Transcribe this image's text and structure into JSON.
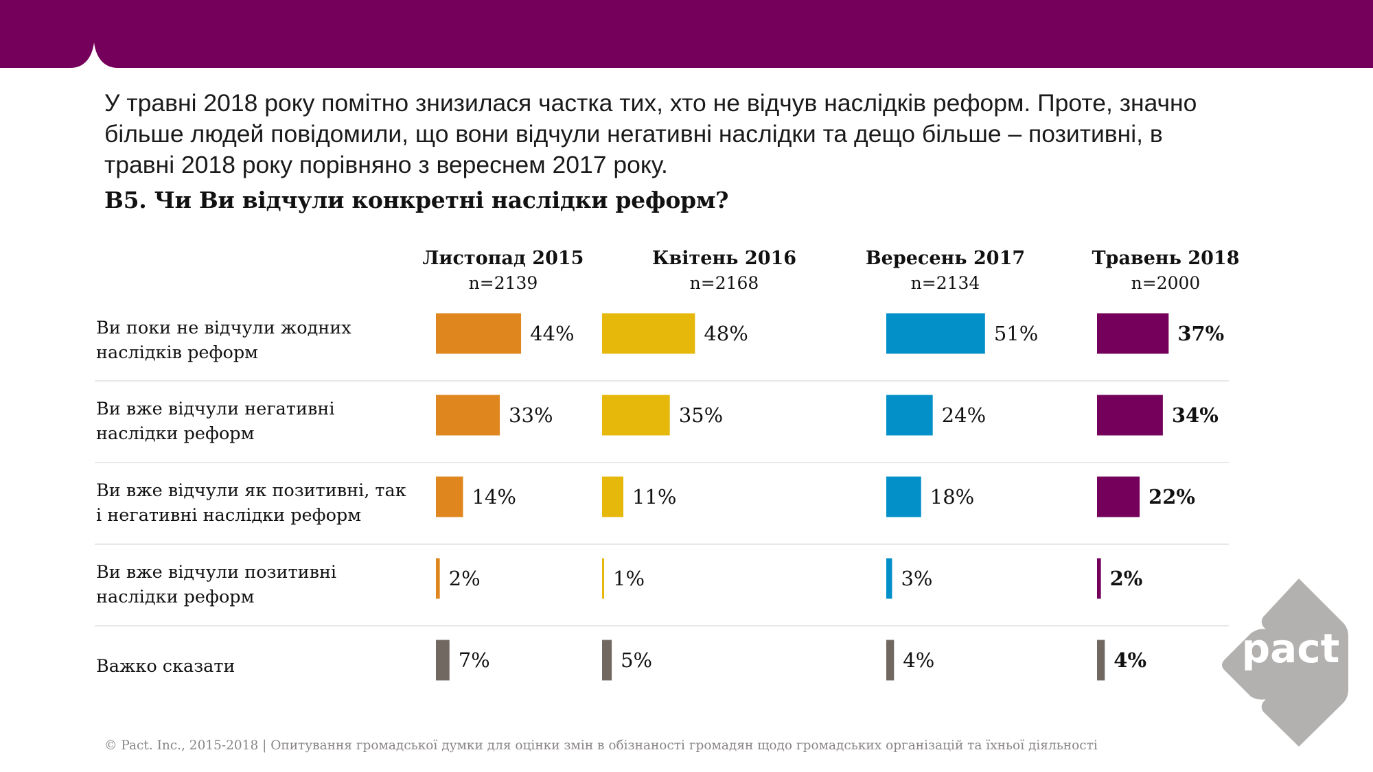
{
  "header": {
    "brand_color": "#74005B"
  },
  "intro_text": "У травні 2018 року помітно знизилася частка тих, хто не відчув наслідків реформ. Проте, значно більше людей повідомили, що вони відчули негативні наслідки та дещо більше – позитивні, в травні 2018 року порівняно з вереснем 2017 року.",
  "intro_lines": [
    "У травні 2018 року помітно знизилася частка тих, хто не відчув наслідків реформ. Проте, значно",
    "більше людей повідомили, що вони відчули негативні наслідки та дещо більше – позитивні, в",
    "травні 2018 року порівняно з вереснем 2017 року."
  ],
  "question": "B5. Чи Ви відчули конкретні наслідки реформ?",
  "chart_data": {
    "type": "bar",
    "orientation": "horizontal",
    "title": "B5. Чи Ви відчули конкретні наслідки реформ?",
    "xlabel": "",
    "ylabel": "",
    "unit": "%",
    "xlim": [
      0,
      100
    ],
    "grid": false,
    "legend": "none",
    "categories": [
      "Ви поки не відчули жодних наслідків реформ",
      "Ви вже відчули негативні наслідки реформ",
      "Ви вже відчули як позитивні, так і негативні наслідки реформ",
      "Ви вже відчули позитивні наслідки реформ",
      "Важко сказати"
    ],
    "category_lines": [
      [
        "Ви поки не відчули жодних",
        "наслідків реформ"
      ],
      [
        "Ви вже відчули негативні",
        "наслідки реформ"
      ],
      [
        "Ви вже відчули як позитивні, так",
        "і негативні наслідки реформ"
      ],
      [
        "Ви вже відчули позитивні",
        "наслідки реформ"
      ],
      [
        "Важко сказати"
      ]
    ],
    "series": [
      {
        "name": "Листопад 2015",
        "n": "n=2139",
        "color": "#E0861E",
        "bold_labels": false,
        "values": [
          44,
          33,
          14,
          2,
          7
        ],
        "labels": [
          "44%",
          "33%",
          "14%",
          "2%",
          "7%"
        ]
      },
      {
        "name": "Квітень 2016",
        "n": "n=2168",
        "color": "#E6B80C",
        "bold_labels": false,
        "values": [
          48,
          35,
          11,
          1,
          5
        ],
        "labels": [
          "48%",
          "35%",
          "11%",
          "1%",
          "5%"
        ]
      },
      {
        "name": "Вересень 2017",
        "n": "n=2134",
        "color": "#0390C8",
        "bold_labels": false,
        "values": [
          51,
          24,
          18,
          3,
          4
        ],
        "labels": [
          "51%",
          "24%",
          "18%",
          "3%",
          "4%"
        ]
      },
      {
        "name": "Травень 2018",
        "n": "n=2000",
        "color": "#74005B",
        "bold_labels": true,
        "values": [
          37,
          34,
          22,
          2,
          4
        ],
        "labels": [
          "37%",
          "34%",
          "22%",
          "2%",
          "4%"
        ]
      }
    ],
    "dont_know_color": "#716862"
  },
  "footer": "© Pact. Inc., 2015-2018 | Опитування громадської думки для оцінки змін в обізнаності громадян щодо громадських організацій та їхньої діяльності",
  "logo": {
    "text": "pact",
    "color": "#B3B1AF"
  }
}
